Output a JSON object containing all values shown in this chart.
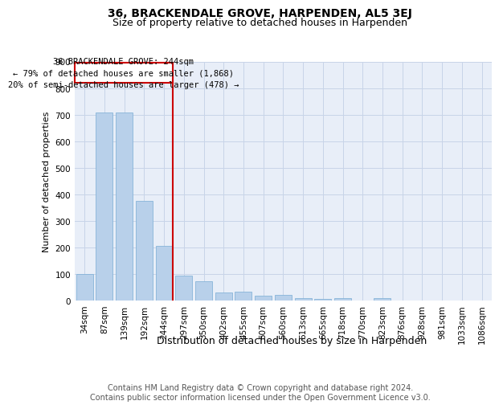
{
  "title": "36, BRACKENDALE GROVE, HARPENDEN, AL5 3EJ",
  "subtitle": "Size of property relative to detached houses in Harpenden",
  "xlabel": "Distribution of detached houses by size in Harpenden",
  "ylabel": "Number of detached properties",
  "categories": [
    "34sqm",
    "87sqm",
    "139sqm",
    "192sqm",
    "244sqm",
    "297sqm",
    "350sqm",
    "402sqm",
    "455sqm",
    "507sqm",
    "560sqm",
    "613sqm",
    "665sqm",
    "718sqm",
    "770sqm",
    "823sqm",
    "876sqm",
    "928sqm",
    "981sqm",
    "1033sqm",
    "1086sqm"
  ],
  "values": [
    100,
    707,
    707,
    375,
    207,
    95,
    73,
    30,
    33,
    18,
    20,
    8,
    5,
    8,
    0,
    10,
    0,
    0,
    0,
    0,
    0
  ],
  "bar_color": "#b8d0ea",
  "bar_edge_color": "#7aadd4",
  "reference_line_index": 4,
  "reference_line_color": "#cc0000",
  "annotation_line1": "36 BRACKENDALE GROVE: 244sqm",
  "annotation_line2": "← 79% of detached houses are smaller (1,868)",
  "annotation_line3": "20% of semi-detached houses are larger (478) →",
  "annotation_box_edgecolor": "#cc0000",
  "ylim": [
    0,
    900
  ],
  "yticks": [
    0,
    100,
    200,
    300,
    400,
    500,
    600,
    700,
    800,
    900
  ],
  "grid_color": "#c8d4e8",
  "background_color": "#e8eef8",
  "footer": "Contains HM Land Registry data © Crown copyright and database right 2024.\nContains public sector information licensed under the Open Government Licence v3.0.",
  "title_fontsize": 10,
  "subtitle_fontsize": 9,
  "ylabel_fontsize": 8,
  "xlabel_fontsize": 9,
  "tick_fontsize": 7.5,
  "annotation_fontsize": 7.5,
  "footer_fontsize": 7
}
